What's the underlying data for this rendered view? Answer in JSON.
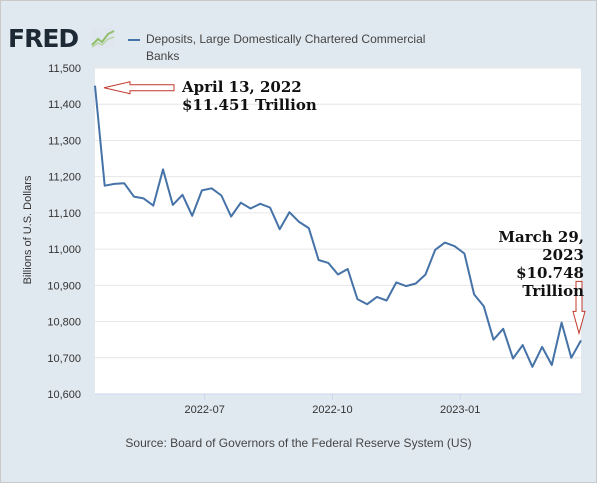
{
  "header": {
    "logo_text": "FRED",
    "logo_icon": "line-graph-icon",
    "legend_label": "Deposits, Large Domestically Chartered Commercial Banks",
    "series_color": "#4572a7"
  },
  "footer": {
    "source": "Source: Board of Governors of the Federal Reserve System (US)"
  },
  "annotations": {
    "start_date": "April 13, 2022",
    "start_value": "$11.451 Trillion",
    "end_date": "March 29, 2023",
    "end_value": "$10.748",
    "end_unit": "Trillion",
    "arrow_color": "#c0392b"
  },
  "chart_data": {
    "type": "line",
    "title": "",
    "xlabel": "",
    "ylabel": "Billions of U.S. Dollars",
    "ylim": [
      10600,
      11500
    ],
    "yticks": [
      "10,600",
      "10,700",
      "10,800",
      "10,900",
      "11,000",
      "11,100",
      "11,200",
      "11,300",
      "11,400",
      "11,500"
    ],
    "xticks": [
      "2022-07",
      "2022-10",
      "2023-01"
    ],
    "grid": "horizontal",
    "series": [
      {
        "values": [
          [
            "2022-04-13",
            11451
          ],
          [
            "2022-04-20",
            11175
          ],
          [
            "2022-04-27",
            11180
          ],
          [
            "2022-05-04",
            11182
          ],
          [
            "2022-05-11",
            11145
          ],
          [
            "2022-05-18",
            11140
          ],
          [
            "2022-05-25",
            11120
          ],
          [
            "2022-06-01",
            11220
          ],
          [
            "2022-06-08",
            11122
          ],
          [
            "2022-06-15",
            11150
          ],
          [
            "2022-06-22",
            11092
          ],
          [
            "2022-06-29",
            11162
          ],
          [
            "2022-07-06",
            11168
          ],
          [
            "2022-07-13",
            11148
          ],
          [
            "2022-07-20",
            11090
          ],
          [
            "2022-07-27",
            11128
          ],
          [
            "2022-08-03",
            11112
          ],
          [
            "2022-08-10",
            11125
          ],
          [
            "2022-08-17",
            11115
          ],
          [
            "2022-08-24",
            11055
          ],
          [
            "2022-08-31",
            11102
          ],
          [
            "2022-09-07",
            11075
          ],
          [
            "2022-09-14",
            11058
          ],
          [
            "2022-09-21",
            10970
          ],
          [
            "2022-09-28",
            10962
          ],
          [
            "2022-10-05",
            10930
          ],
          [
            "2022-10-12",
            10945
          ],
          [
            "2022-10-19",
            10862
          ],
          [
            "2022-10-26",
            10848
          ],
          [
            "2022-11-02",
            10868
          ],
          [
            "2022-11-09",
            10858
          ],
          [
            "2022-11-16",
            10908
          ],
          [
            "2022-11-23",
            10898
          ],
          [
            "2022-11-30",
            10905
          ],
          [
            "2022-12-07",
            10930
          ],
          [
            "2022-12-14",
            10998
          ],
          [
            "2022-12-21",
            11018
          ],
          [
            "2022-12-28",
            11008
          ],
          [
            "2023-01-04",
            10988
          ],
          [
            "2023-01-11",
            10875
          ],
          [
            "2023-01-18",
            10842
          ],
          [
            "2023-01-25",
            10750
          ],
          [
            "2023-02-01",
            10780
          ],
          [
            "2023-02-08",
            10698
          ],
          [
            "2023-02-15",
            10735
          ],
          [
            "2023-02-22",
            10675
          ],
          [
            "2023-03-01",
            10730
          ],
          [
            "2023-03-08",
            10680
          ],
          [
            "2023-03-15",
            10797
          ],
          [
            "2023-03-22",
            10700
          ],
          [
            "2023-03-29",
            10748
          ]
        ]
      }
    ]
  }
}
